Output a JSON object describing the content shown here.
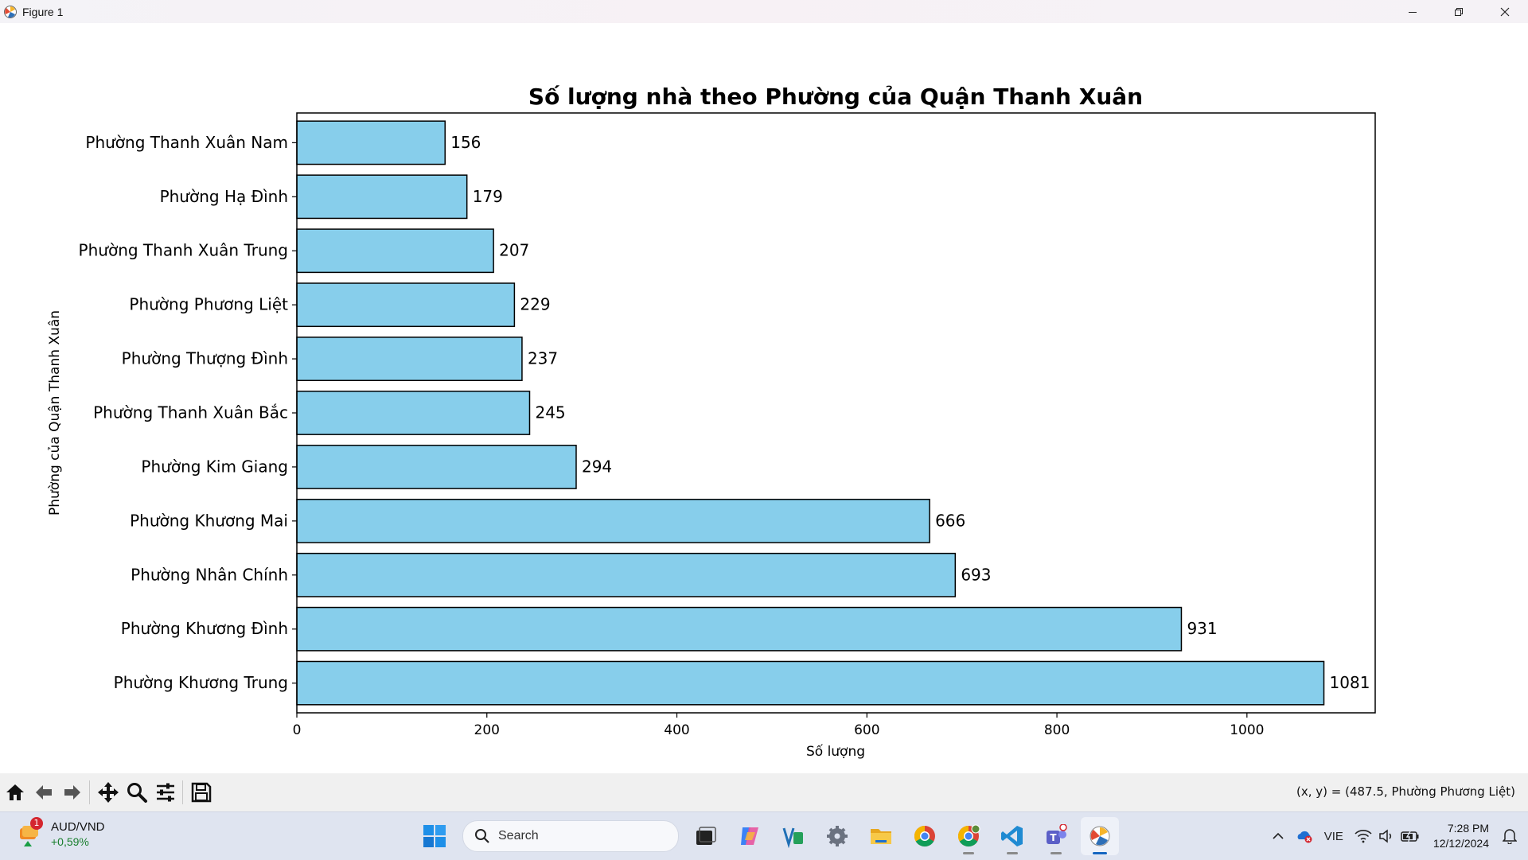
{
  "window": {
    "title": "Figure 1"
  },
  "chart_data": {
    "type": "bar",
    "orientation": "horizontal",
    "title": "Số lượng nhà theo Phường của Quận Thanh Xuân",
    "xlabel": "Số lượng",
    "ylabel": "Phường của Quận Thanh Xuân",
    "categories": [
      "Phường Khương Trung",
      "Phường Khương Đình",
      "Phường Nhân Chính",
      "Phường Khương Mai",
      "Phường Kim Giang",
      "Phường Thanh Xuân Bắc",
      "Phường Thượng Đình",
      "Phường Phương Liệt",
      "Phường Thanh Xuân Trung",
      "Phường Hạ Đình",
      "Phường Thanh Xuân Nam"
    ],
    "values": [
      1081,
      931,
      693,
      666,
      294,
      245,
      237,
      229,
      207,
      179,
      156
    ],
    "xlim": [
      0,
      1135
    ],
    "xticks": [
      0,
      200,
      400,
      600,
      800,
      1000
    ],
    "bar_color": "#87ceeb",
    "edge_color": "#000000",
    "grid": false,
    "data_labels": true
  },
  "toolbar": {
    "buttons": [
      "home-icon",
      "back-arrow-icon",
      "forward-arrow-icon",
      "pan-icon",
      "zoom-icon",
      "configure-subplots-icon",
      "save-icon"
    ],
    "coords": "(x, y) = (487.5, Phường Phương Liệt)"
  },
  "taskbar": {
    "widget": {
      "badge": "1",
      "line1": "AUD/VND",
      "line2": "+0,59%"
    },
    "search_placeholder": "Search",
    "apps": [
      "start-icon",
      "search",
      "task-view-icon",
      "copilot-icon",
      "vs-app-icon",
      "settings-icon",
      "file-explorer-icon",
      "chrome-icon",
      "chrome-profile-icon",
      "vscode-icon",
      "teams-icon",
      "matplotlib-icon"
    ],
    "language": "VIE",
    "time": "7:28 PM",
    "date": "12/12/2024"
  }
}
